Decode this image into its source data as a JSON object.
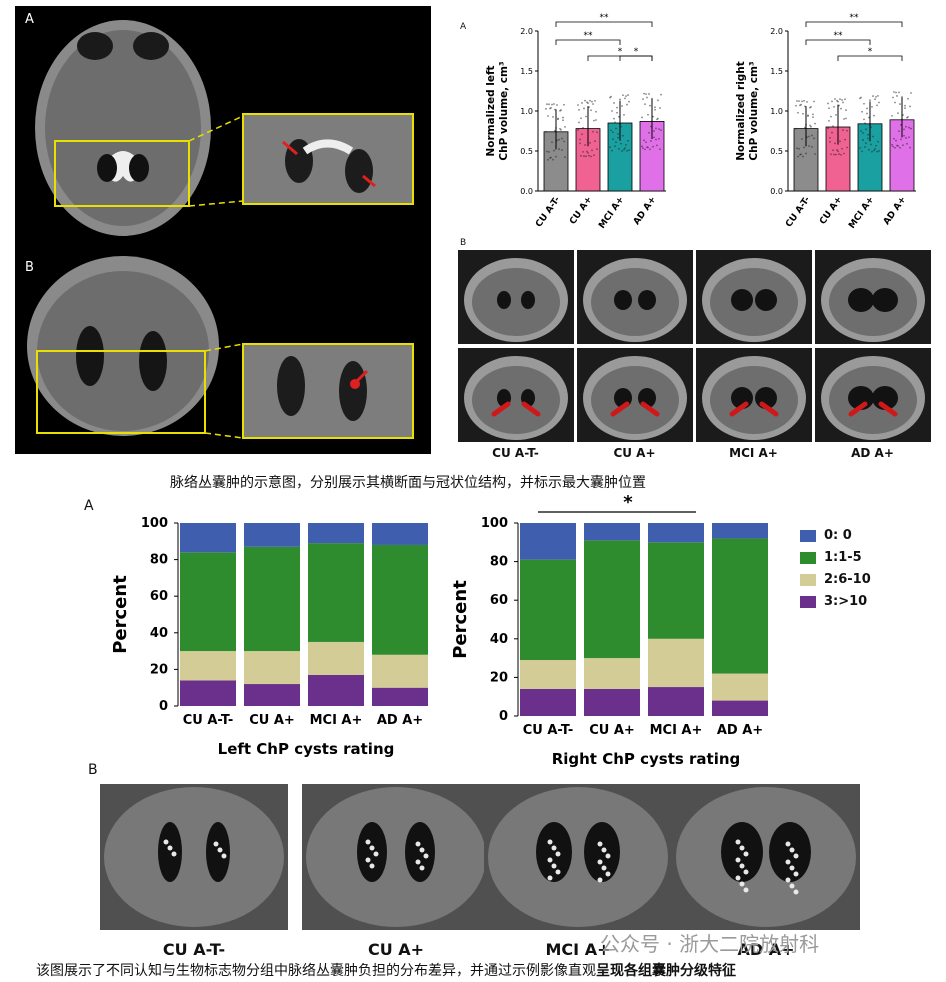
{
  "fig1": {
    "panel_a_label": "A",
    "panel_b_label": "B",
    "caption": "脉络丛囊肿的示意图，分别展示其横断面与冠状位结构，并标示最大囊肿位置"
  },
  "fig2": {
    "panel_a_label": "A",
    "panel_b_label": "B",
    "left_ylabel": "Normalized left ChP volume, cm³",
    "right_ylabel": "Normalized right ChP volume, cm³",
    "yticks": [
      "0.0",
      "0.5",
      "1.0",
      "1.5",
      "2.0"
    ],
    "groups": [
      "CU A-T-",
      "CU A+",
      "MCI A+",
      "AD A+"
    ],
    "sig_left": [
      "**",
      "**",
      "*",
      "*"
    ],
    "sig_right": [
      "**",
      "**",
      "*"
    ],
    "coronal_labels": [
      "CU A-T-",
      "CU A+",
      "MCI A+",
      "AD A+"
    ]
  },
  "fig3": {
    "panel_a_label": "A",
    "panel_b_label": "B",
    "ylabel": "Percent",
    "yticks": [
      "0",
      "20",
      "40",
      "60",
      "80",
      "100"
    ],
    "left_title": "Left ChP cysts rating",
    "right_title": "Right ChP cysts rating",
    "right_sig": "*",
    "legend": [
      {
        "label": "0: 0",
        "color": "#3f5fae"
      },
      {
        "label": "1:1-5",
        "color": "#2e8b2e"
      },
      {
        "label": "2:6-10",
        "color": "#d4cc96"
      },
      {
        "label": "3:>10",
        "color": "#6b2f8c"
      }
    ],
    "example_labels": [
      "CU A-T-",
      "CU A+",
      "MCI A+",
      "AD A+"
    ],
    "caption_normal": "该图展示了不同认知与生物标志物分组中脉络丛囊肿负担的分布差异，并通过示例影像直观",
    "caption_bold": "呈现各组囊肿分级特征",
    "watermark": "公众号 · 浙大二院放射科"
  },
  "chart_data": [
    {
      "type": "bar",
      "title": "",
      "ylabel": "Normalized left ChP volume, cm³",
      "categories": [
        "CU A-T-",
        "CU A+",
        "MCI A+",
        "AD A+"
      ],
      "values": [
        0.74,
        0.78,
        0.85,
        0.87
      ],
      "ylim": [
        0,
        2.0
      ],
      "colors": [
        "#8c8c8c",
        "#f06292",
        "#1aa0a0",
        "#e070e8"
      ]
    },
    {
      "type": "bar",
      "title": "",
      "ylabel": "Normalized right ChP volume, cm³",
      "categories": [
        "CU A-T-",
        "CU A+",
        "MCI A+",
        "AD A+"
      ],
      "values": [
        0.78,
        0.8,
        0.84,
        0.89
      ],
      "ylim": [
        0,
        2.0
      ],
      "colors": [
        "#8c8c8c",
        "#f06292",
        "#1aa0a0",
        "#e070e8"
      ]
    },
    {
      "type": "bar",
      "title": "Left ChP cysts rating",
      "ylabel": "Percent",
      "categories": [
        "CU A-T-",
        "CU A+",
        "MCI A+",
        "AD A+"
      ],
      "ylim": [
        0,
        100
      ],
      "series": [
        {
          "name": "3:>10",
          "values": [
            14,
            12,
            17,
            10
          ]
        },
        {
          "name": "2:6-10",
          "values": [
            16,
            18,
            18,
            18
          ]
        },
        {
          "name": "1:1-5",
          "values": [
            54,
            57,
            54,
            60
          ]
        },
        {
          "name": "0: 0",
          "values": [
            16,
            13,
            11,
            12
          ]
        }
      ]
    },
    {
      "type": "bar",
      "title": "Right ChP cysts rating",
      "ylabel": "Percent",
      "categories": [
        "CU A-T-",
        "CU A+",
        "MCI A+",
        "AD A+"
      ],
      "ylim": [
        0,
        100
      ],
      "series": [
        {
          "name": "3:>10",
          "values": [
            14,
            14,
            15,
            8
          ]
        },
        {
          "name": "2:6-10",
          "values": [
            15,
            16,
            25,
            14
          ]
        },
        {
          "name": "1:1-5",
          "values": [
            52,
            61,
            50,
            70
          ]
        },
        {
          "name": "0: 0",
          "values": [
            19,
            9,
            10,
            8
          ]
        }
      ]
    }
  ]
}
